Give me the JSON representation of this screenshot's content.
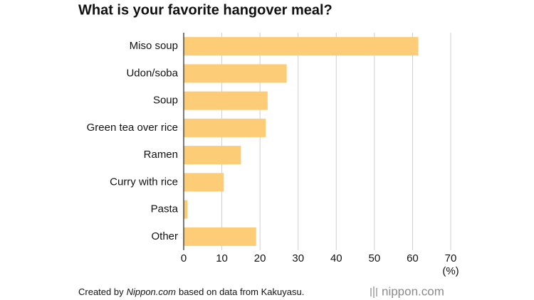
{
  "chart_data": {
    "type": "bar",
    "orientation": "horizontal",
    "title": "What is your favorite hangover meal?",
    "categories": [
      "Miso soup",
      "Udon/soba",
      "Soup",
      "Green tea over rice",
      "Ramen",
      "Curry with rice",
      "Pasta",
      "Other"
    ],
    "values": [
      61.5,
      27,
      22,
      21.5,
      15,
      10.5,
      1,
      19
    ],
    "color": "#fdcc76",
    "xlim": [
      0,
      70
    ],
    "xticks": [
      0,
      10,
      20,
      30,
      40,
      50,
      60,
      70
    ],
    "x_unit": "(%)",
    "grid": true,
    "source": {
      "prefix": "Created by",
      "site": "Nippon.com",
      "suffix": "based on data from Kakuyasu."
    },
    "logo": "nippon.com"
  }
}
